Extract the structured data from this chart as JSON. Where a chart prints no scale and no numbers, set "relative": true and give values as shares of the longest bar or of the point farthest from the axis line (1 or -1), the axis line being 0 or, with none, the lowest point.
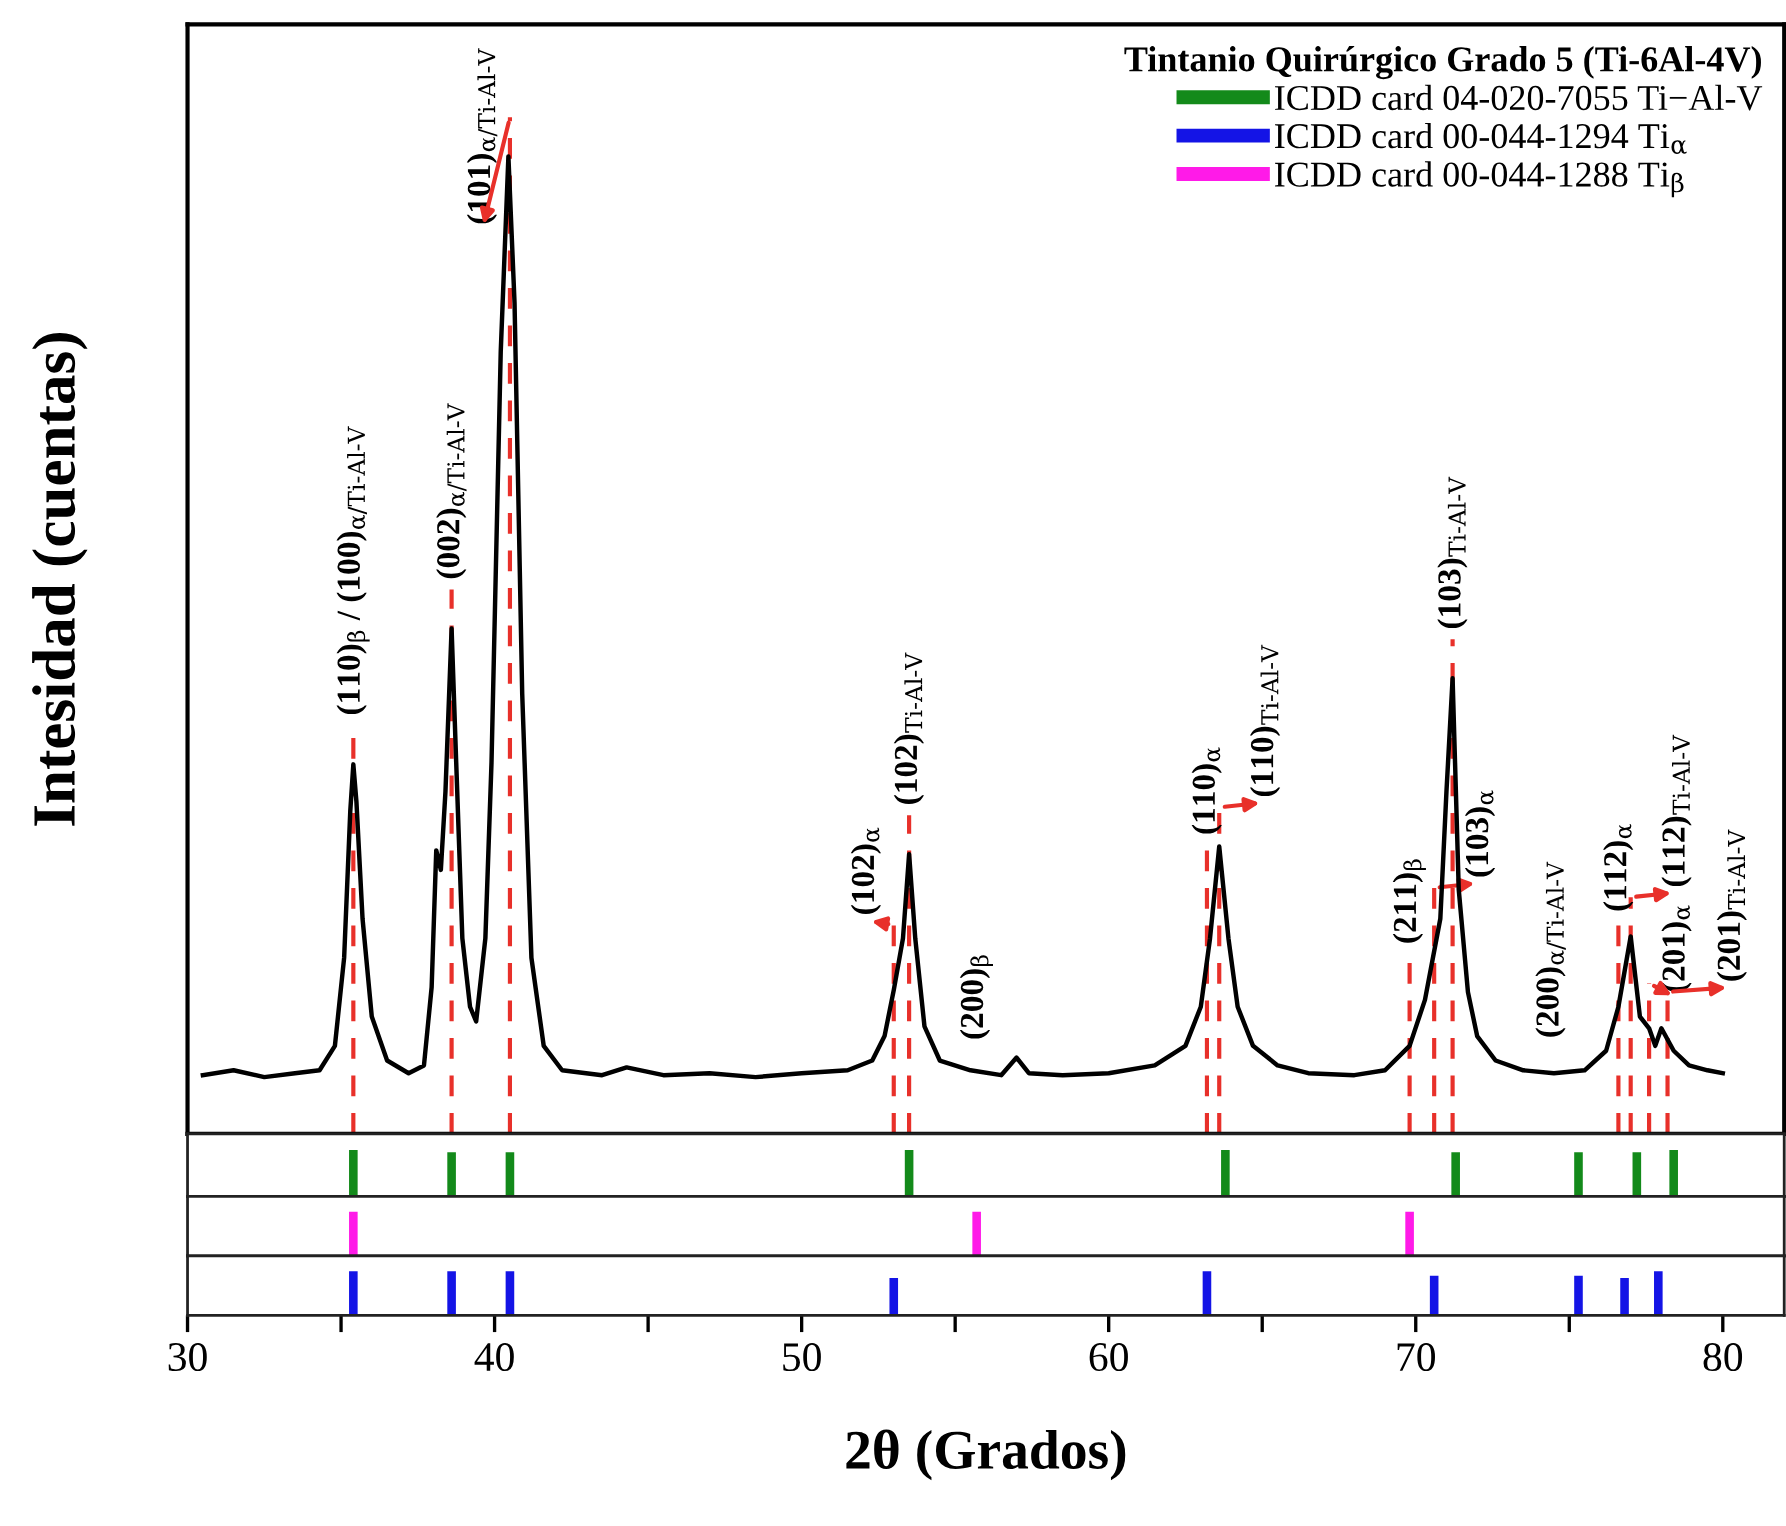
{
  "chart_data": [
    {
      "type": "line",
      "relative": true,
      "xlim": [
        30,
        82
      ],
      "tick_labels": false,
      "ylabel": "Intesidad (cuentas)",
      "legend": "top right",
      "legend_title": "Tintanio Quirúrgico Grado 5 (Ti-6Al-4V)",
      "line_style": "solid",
      "marker": "none",
      "x": [
        30.5,
        31.5,
        32.5,
        33.5,
        34.3,
        34.8,
        35.1,
        35.3,
        35.4,
        35.5,
        35.7,
        36.0,
        36.5,
        37.2,
        37.7,
        37.95,
        38.1,
        38.25,
        38.4,
        38.6,
        38.75,
        38.95,
        39.2,
        39.4,
        39.7,
        39.9,
        40.2,
        40.45,
        40.65,
        40.9,
        41.2,
        41.6,
        42.2,
        43.5,
        44.3,
        45.5,
        47,
        48.5,
        50,
        51.5,
        52.3,
        52.7,
        53.0,
        53.3,
        53.5,
        53.7,
        54.0,
        54.5,
        55.5,
        56.5,
        57.0,
        57.4,
        58.5,
        60,
        61.5,
        62.5,
        63.0,
        63.3,
        63.6,
        63.9,
        64.2,
        64.7,
        65.5,
        66.5,
        68,
        69,
        69.8,
        70.3,
        70.8,
        71.0,
        71.2,
        71.4,
        71.7,
        72.0,
        72.6,
        73.5,
        74.5,
        75.5,
        76.2,
        76.6,
        77.0,
        77.3,
        77.6,
        77.8,
        78.0,
        78.4,
        78.9,
        79.5,
        80.0
      ],
      "series": [
        {
          "color": "#000000",
          "values": [
            0.06,
            0.065,
            0.058,
            0.062,
            0.065,
            0.09,
            0.18,
            0.33,
            0.378,
            0.34,
            0.22,
            0.12,
            0.075,
            0.062,
            0.07,
            0.15,
            0.29,
            0.27,
            0.35,
            0.517,
            0.38,
            0.2,
            0.13,
            0.115,
            0.2,
            0.38,
            0.8,
            1.0,
            0.85,
            0.45,
            0.18,
            0.09,
            0.065,
            0.06,
            0.068,
            0.06,
            0.062,
            0.058,
            0.062,
            0.065,
            0.075,
            0.1,
            0.147,
            0.2,
            0.286,
            0.2,
            0.11,
            0.075,
            0.065,
            0.06,
            0.078,
            0.062,
            0.06,
            0.062,
            0.07,
            0.09,
            0.13,
            0.2,
            0.294,
            0.2,
            0.13,
            0.09,
            0.07,
            0.062,
            0.06,
            0.065,
            0.09,
            0.137,
            0.22,
            0.35,
            0.466,
            0.25,
            0.145,
            0.1,
            0.075,
            0.065,
            0.062,
            0.065,
            0.085,
            0.13,
            0.202,
            0.12,
            0.108,
            0.09,
            0.108,
            0.085,
            0.07,
            0.065,
            0.062
          ]
        }
      ],
      "ref_lines": [
        {
          "axis": "x",
          "value": 35.4,
          "label": "(110)$_{β}$ / (100)$_{α/Ti-Al-V}$",
          "color": "#e8302a",
          "line_style": "dashed"
        },
        {
          "axis": "x",
          "value": 38.6,
          "label": "(002)$_{α/Ti-Al-V}$",
          "color": "#e8302a",
          "line_style": "dashed"
        },
        {
          "axis": "x",
          "value": 40.5,
          "label": "(101)$_{α/Ti-Al-V}$",
          "color": "#e8302a",
          "line_style": "dashed"
        },
        {
          "axis": "x",
          "value": 53.0,
          "label": "(102)$_{α}$",
          "color": "#e8302a",
          "line_style": "dashed"
        },
        {
          "axis": "x",
          "value": 53.5,
          "label": "(102)$_{Ti-Al-V}$",
          "color": "#e8302a",
          "line_style": "dashed"
        },
        {
          "axis": "x",
          "value": 63.2,
          "label": "(110)$_{α}$",
          "color": "#e8302a",
          "line_style": "dashed"
        },
        {
          "axis": "x",
          "value": 63.6,
          "label": "(110)$_{Ti-Al-V}$",
          "color": "#e8302a",
          "line_style": "dashed"
        },
        {
          "axis": "x",
          "value": 69.8,
          "label": "(211)$_{β}$",
          "color": "#e8302a",
          "line_style": "dashed"
        },
        {
          "axis": "x",
          "value": 70.6,
          "label": "(103)$_{α}$",
          "color": "#e8302a",
          "line_style": "dashed"
        },
        {
          "axis": "x",
          "value": 71.2,
          "label": "(103)$_{Ti-Al-V}$",
          "color": "#e8302a",
          "line_style": "dashed"
        },
        {
          "axis": "x",
          "value": 76.6,
          "label": "(112)$_{α}$",
          "color": "#e8302a",
          "line_style": "dashed"
        },
        {
          "axis": "x",
          "value": 77.0,
          "label": "(112)$_{Ti-Al-V}$",
          "color": "#e8302a",
          "line_style": "dashed"
        },
        {
          "axis": "x",
          "value": 77.6,
          "label": "(201)$_{α}$",
          "color": "#e8302a",
          "line_style": "dashed"
        },
        {
          "axis": "x",
          "value": 78.2,
          "label": "(201)$_{Ti-Al-V}$",
          "color": "#e8302a",
          "line_style": "dashed"
        }
      ],
      "annotations": [
        "(200)$_{β}$",
        "(200)$_{α/Ti-Al-V}$"
      ]
    },
    {
      "type": "bar",
      "relative": true,
      "xlim": [
        30,
        82
      ],
      "tick_labels": false,
      "series": [
        {
          "name": "ICDD card 04-020-7055 Ti−Al-V",
          "color": "#138a1a",
          "x": [
            35.4,
            38.6,
            40.5,
            53.5,
            63.8,
            71.3,
            75.3,
            77.2,
            78.4
          ],
          "values": [
            1,
            0.95,
            0.95,
            1,
            1,
            0.95,
            0.95,
            0.95,
            1
          ]
        }
      ]
    },
    {
      "type": "bar",
      "relative": true,
      "xlim": [
        30,
        82
      ],
      "tick_labels": false,
      "series": [
        {
          "name": "ICDD card 00-044-1288 Ti$_{β}$",
          "color": "#ff1ae8",
          "x": [
            35.4,
            55.7,
            69.8
          ],
          "values": [
            1,
            1,
            1
          ]
        }
      ]
    },
    {
      "type": "bar",
      "relative": true,
      "xlim": [
        30,
        82
      ],
      "tick_labels": "x",
      "xlabel": "2θ (Grados)",
      "xticks": [
        30,
        {
          "value": 35,
          "label": null
        },
        40,
        {
          "value": 45,
          "label": null
        },
        50,
        {
          "value": 55,
          "label": null
        },
        60,
        {
          "value": 65,
          "label": null
        },
        70,
        {
          "value": 75,
          "label": null
        },
        80
      ],
      "series": [
        {
          "name": "ICDD card 00-044-1294 Ti$_{α}$",
          "color": "#1414e6",
          "x": [
            35.4,
            38.6,
            40.5,
            53.0,
            63.2,
            70.6,
            75.3,
            76.8,
            77.9
          ],
          "values": [
            1,
            1,
            1,
            0.85,
            1,
            0.9,
            0.9,
            0.85,
            1
          ]
        }
      ]
    }
  ]
}
